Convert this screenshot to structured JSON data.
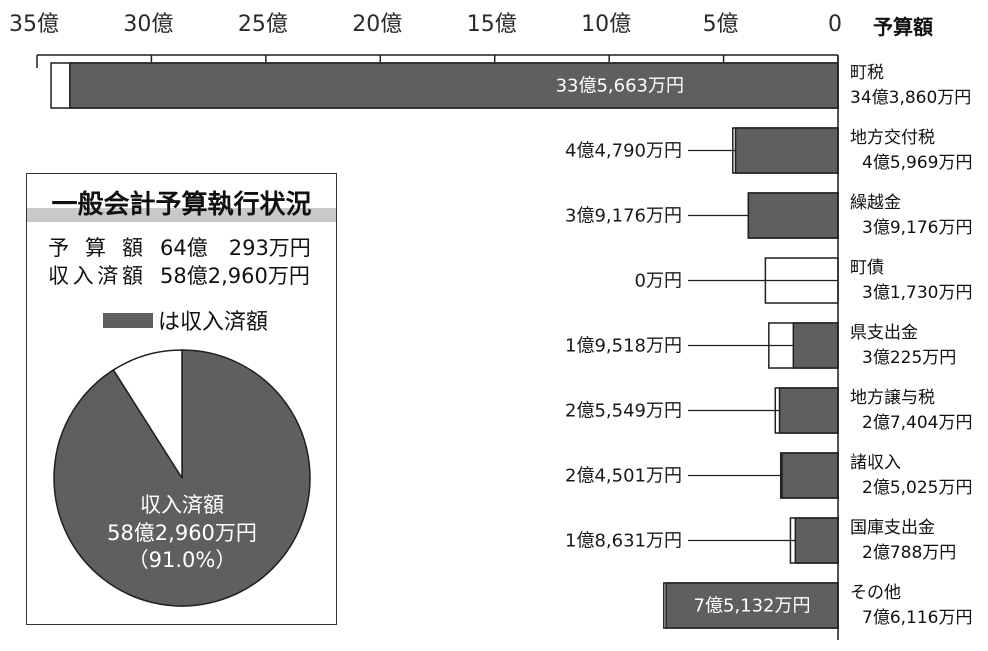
{
  "colors": {
    "income_bar": "#5f5f5f",
    "budget_bar": "#ffffff",
    "outline": "#1f1f1f",
    "title_band": "#c9c9c9",
    "inside_label": "#ffffff",
    "text": "#1a1a1a"
  },
  "chart_data": [
    {
      "type": "bar",
      "horizontal": true,
      "x_reversed": true,
      "xlim": [
        0,
        35
      ],
      "x_ticks": [
        35,
        30,
        25,
        20,
        15,
        10,
        5,
        0
      ],
      "x_tick_labels": [
        "35億",
        "30億",
        "25億",
        "20億",
        "15億",
        "10億",
        "5億",
        "0"
      ],
      "categories": [
        "町税",
        "地方交付税",
        "繰越金",
        "町債",
        "県支出金",
        "地方譲与税",
        "諸収入",
        "国庫支出金",
        "その他"
      ],
      "series": [
        {
          "name": "予算額",
          "values": [
            34.386,
            4.5969,
            3.9176,
            3.173,
            3.0225,
            2.7404,
            2.5025,
            2.0788,
            7.6116
          ],
          "labels": [
            "34億3,860万円",
            "4億5,969万円",
            "3億9,176万円",
            "3億1,730万円",
            "3億225万円",
            "2億7,404万円",
            "2億5,025万円",
            "2億788万円",
            "7億6,116万円"
          ]
        },
        {
          "name": "収入済額",
          "values": [
            33.5663,
            4.479,
            3.9176,
            0,
            1.9518,
            2.5549,
            2.4501,
            1.8631,
            7.5132
          ],
          "labels": [
            "33億5,663万円",
            "4億4,790万円",
            "3億9,176万円",
            "0万円",
            "1億9,518万円",
            "2億5,549万円",
            "2億4,501万円",
            "1億8,631万円",
            "7億5,132万円"
          ]
        }
      ]
    },
    {
      "type": "pie",
      "slices": [
        {
          "name": "収入済額",
          "value": 91.0,
          "amount": "58億2,960万円",
          "percent_label": "（91.0%）"
        },
        {
          "value": 9.0
        }
      ]
    }
  ],
  "panel": {
    "title": "一般会計予算執行状況",
    "budget_label": "予 算 額",
    "budget_total": "64億　293万円",
    "income_total": "58億2,960万円",
    "legend_label": "は収入済額"
  }
}
